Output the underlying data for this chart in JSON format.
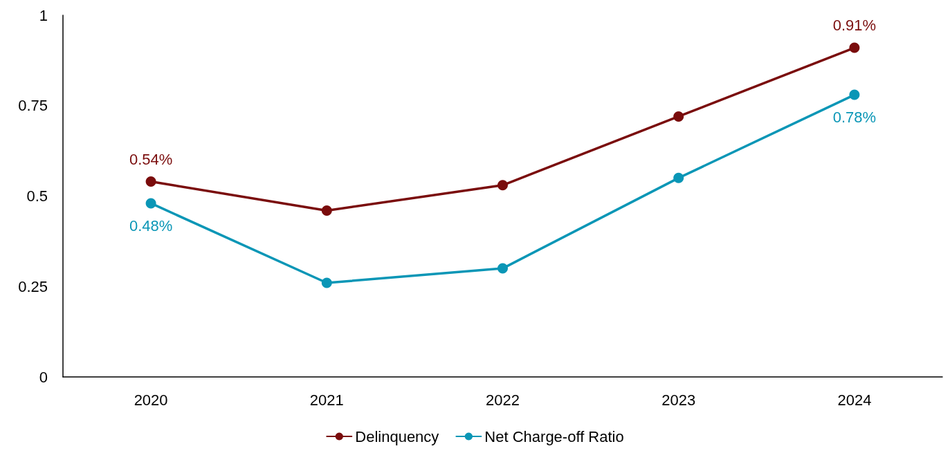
{
  "chart_data": {
    "type": "line",
    "categories": [
      "2020",
      "2021",
      "2022",
      "2023",
      "2024"
    ],
    "series": [
      {
        "name": "Delinquency",
        "color": "#7a0c0c",
        "values": [
          0.54,
          0.46,
          0.53,
          0.72,
          0.91
        ],
        "value_labels": [
          "0.54%",
          null,
          null,
          null,
          "0.91%"
        ]
      },
      {
        "name": "Net Charge-off Ratio",
        "color": "#0a96b6",
        "values": [
          0.48,
          0.26,
          0.3,
          0.55,
          0.78
        ],
        "value_labels": [
          "0.48%",
          null,
          null,
          null,
          "0.78%"
        ]
      }
    ],
    "ylim": [
      0,
      1
    ],
    "yticks": [
      0,
      0.25,
      0.5,
      0.75,
      1
    ],
    "grid": false,
    "legend": "bottom",
    "marker": "circle",
    "line_style": "solid"
  }
}
